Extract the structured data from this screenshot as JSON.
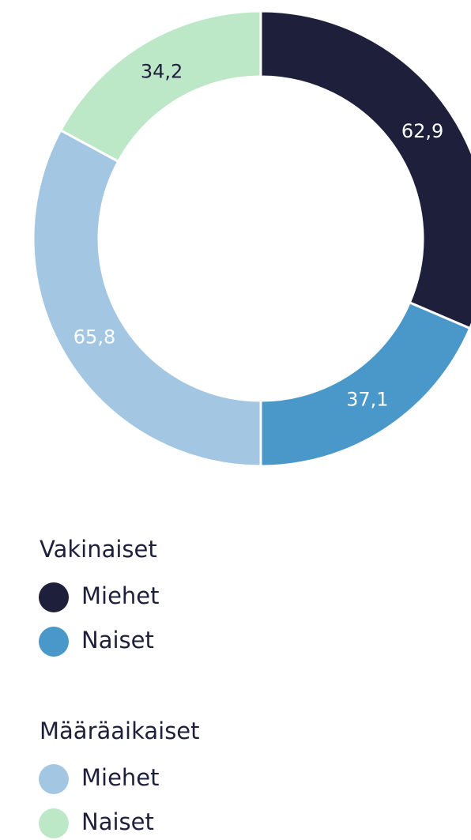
{
  "chart_data": {
    "type": "donut",
    "series": [
      {
        "name": "Vakinaiset",
        "categories": [
          "Miehet",
          "Naiset"
        ],
        "colors": [
          "#1e1f3b",
          "#4a98c9"
        ],
        "label_colors": [
          "#ffffff",
          "#ffffff"
        ],
        "values": [
          62.9,
          37.1
        ],
        "value_labels": [
          "62,9",
          "37,1"
        ]
      },
      {
        "name": "Määräaikaiset",
        "categories": [
          "Miehet",
          "Naiset"
        ],
        "colors": [
          "#a3c7e2",
          "#bde8c8"
        ],
        "label_colors": [
          "#ffffff",
          "#1e1f3b"
        ],
        "values": [
          65.8,
          34.2
        ],
        "value_labels": [
          "65,8",
          "34,2"
        ]
      }
    ]
  }
}
